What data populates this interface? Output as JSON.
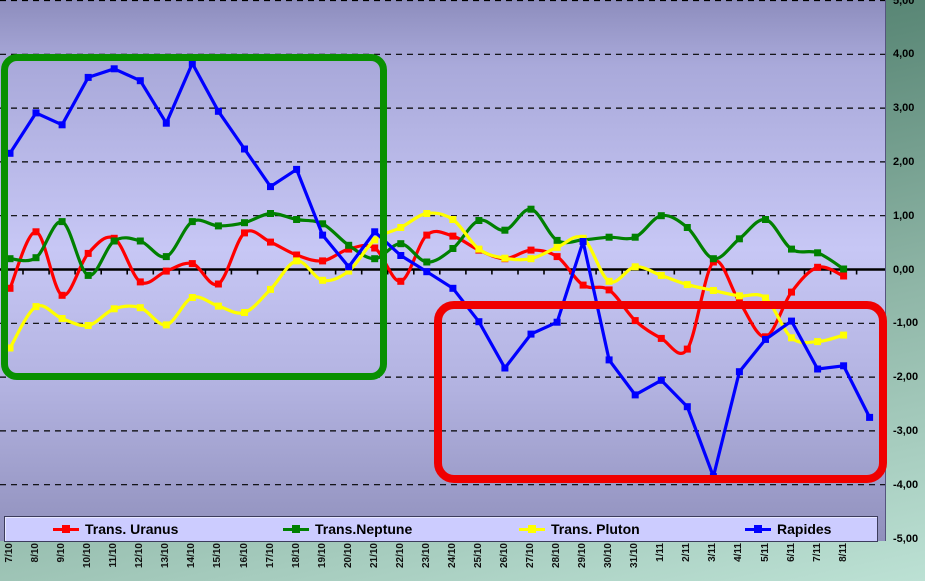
{
  "chart_data": {
    "type": "line",
    "title": "",
    "xlabel": "",
    "ylabel": "",
    "ylim": [
      -5,
      5
    ],
    "ytick_step": 1,
    "ytick_labels": [
      "5,00",
      "4,00",
      "3,00",
      "2,00",
      "1,00",
      "0,00",
      "-1,00",
      "-2,00",
      "-3,00",
      "-4,00",
      "-5,00"
    ],
    "grid": "horizontal-dashed-black",
    "legend_position": "bottom",
    "number_format": "decimal-comma",
    "categories": [
      "7/10",
      "8/10",
      "9/10",
      "10/10",
      "11/10",
      "12/10",
      "13/10",
      "14/10",
      "15/10",
      "16/10",
      "17/10",
      "18/10",
      "19/10",
      "20/10",
      "21/10",
      "22/10",
      "23/10",
      "24/10",
      "25/10",
      "26/10",
      "27/10",
      "28/10",
      "29/10",
      "30/10",
      "31/10",
      "1/11",
      "2/11",
      "3/11",
      "4/11",
      "5/11",
      "6/11",
      "7/11",
      "8/11",
      ""
    ],
    "series": [
      {
        "name": "Trans. Uranus",
        "color": "#ff0000",
        "smooth": true,
        "values": [
          -0.35,
          0.7,
          -0.48,
          0.3,
          0.58,
          -0.23,
          -0.03,
          0.11,
          -0.27,
          0.68,
          0.51,
          0.27,
          0.16,
          0.38,
          0.4,
          -0.22,
          0.64,
          0.62,
          0.36,
          0.2,
          0.36,
          0.24,
          -0.29,
          -0.38,
          -0.95,
          -1.28,
          -1.48,
          0.14,
          -0.6,
          -1.25,
          -0.42,
          0.04,
          -0.12
        ]
      },
      {
        "name": "Trans.Neptune",
        "color": "#008000",
        "smooth": true,
        "values": [
          0.2,
          0.22,
          0.89,
          -0.11,
          0.53,
          0.53,
          0.24,
          0.89,
          0.81,
          0.87,
          1.04,
          0.93,
          0.85,
          0.45,
          0.2,
          0.48,
          0.14,
          0.39,
          0.91,
          0.73,
          1.12,
          0.54,
          0.55,
          0.6,
          0.6,
          1.0,
          0.78,
          0.2,
          0.57,
          0.93,
          0.38,
          0.31,
          0.01
        ]
      },
      {
        "name": "Trans. Pluton",
        "color": "#ffff00",
        "smooth": true,
        "values": [
          -1.46,
          -0.69,
          -0.91,
          -1.04,
          -0.73,
          -0.71,
          -1.03,
          -0.52,
          -0.68,
          -0.8,
          -0.37,
          0.16,
          -0.2,
          -0.03,
          0.55,
          0.78,
          1.04,
          0.93,
          0.38,
          0.21,
          0.2,
          0.41,
          0.58,
          -0.22,
          0.05,
          -0.11,
          -0.28,
          -0.39,
          -0.49,
          -0.53,
          -1.27,
          -1.34,
          -1.22
        ]
      },
      {
        "name": "Rapides",
        "color": "#0000ff",
        "smooth": false,
        "values": [
          2.16,
          2.91,
          2.69,
          3.57,
          3.73,
          3.51,
          2.72,
          3.83,
          2.94,
          2.24,
          1.54,
          1.86,
          0.64,
          0.05,
          0.7,
          0.26,
          -0.04,
          -0.35,
          -0.97,
          -1.83,
          -1.2,
          -0.98,
          0.52,
          -1.68,
          -2.33,
          -2.06,
          -2.55,
          -3.85,
          -1.9,
          -1.3,
          -0.96,
          -1.85,
          -1.79,
          -2.75
        ]
      }
    ],
    "annotations": [
      {
        "shape": "rect",
        "color": "#089000",
        "desc": "green highlight box over 7/10 - 21/10, values +3.9 to -2.0"
      },
      {
        "shape": "rect",
        "color": "#f00000",
        "desc": "red highlight box over 24/10 - 8/11, values -0.7 to -3.8"
      }
    ]
  },
  "legend": {
    "items": [
      {
        "label": "Trans. Uranus",
        "color": "#ff0000"
      },
      {
        "label": "Trans.Neptune",
        "color": "#008000"
      },
      {
        "label": "Trans. Pluton",
        "color": "#ffff00"
      },
      {
        "label": "Rapides",
        "color": "#0000ff"
      }
    ]
  },
  "colors": {
    "plot_bg_mid": "#c7c7f5",
    "plot_bg_edge": "#8d8dbd",
    "outer_bg_dark": "#3e6e5c",
    "outer_bg_light": "#bce1d4",
    "legend_bg": "#ccccff",
    "gridline": "#000000",
    "axis_line": "#000000"
  }
}
